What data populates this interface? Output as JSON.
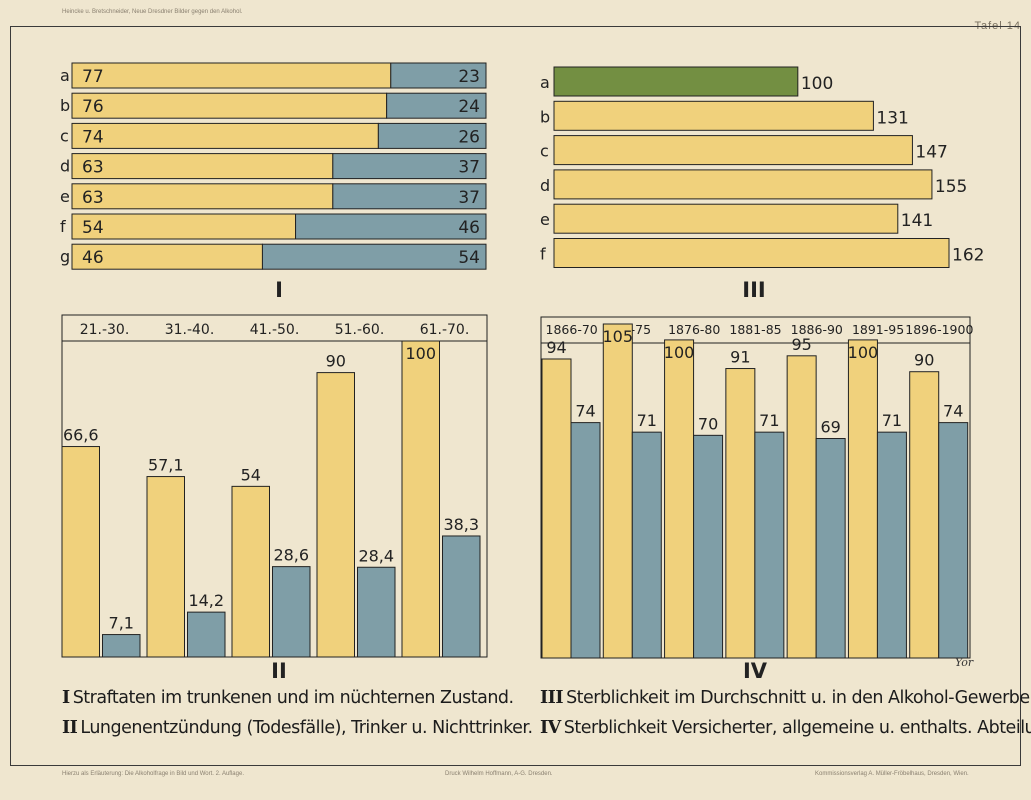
{
  "header": {
    "left_small": "Heincke u. Bretschneider, Neue Dresdner Bilder gegen den Alkohol.",
    "plate_label": "Tafel 14"
  },
  "footer": {
    "left": "Hierzu als Erläuterung: Die Alkoholfrage in Bild und Wort. 2. Auflage.",
    "center": "Druck Wilhelm Hoffmann, A-G. Dresden.",
    "right": "Kommissionsverlag A. Müller-Fröbelhaus, Dresden, Wien.",
    "signature": "Yor"
  },
  "captions": [
    {
      "numeral": "I",
      "text": "Straftaten im trunkenen und im nüchternen Zustand."
    },
    {
      "numeral": "II",
      "text": "Lungenentzündung (Todesfälle), Trinker u. Nichttrinker."
    },
    {
      "numeral": "III",
      "text": "Sterblichkeit im Durchschnitt u. in den Alkohol-Gewerben."
    },
    {
      "numeral": "IV",
      "text": "Sterblichkeit Versicherter, allgemeine u. enthalts. Abteilung."
    }
  ],
  "colors": {
    "yellow": "#f0d17c",
    "blue": "#7f9ea7",
    "green": "#738f42",
    "ink": "#222222"
  },
  "chart_data": [
    {
      "id": "I",
      "type": "bar",
      "orientation": "horizontal",
      "stacked": true,
      "numeral": "I",
      "categories": [
        "a",
        "b",
        "c",
        "d",
        "e",
        "f",
        "g"
      ],
      "series": [
        {
          "values": [
            77,
            76,
            74,
            63,
            63,
            54,
            46
          ],
          "color": "yellow"
        },
        {
          "values": [
            23,
            24,
            26,
            37,
            37,
            46,
            54
          ],
          "color": "blue"
        }
      ],
      "xlim": [
        0,
        100
      ]
    },
    {
      "id": "III",
      "type": "bar",
      "orientation": "horizontal",
      "numeral": "III",
      "categories": [
        "a",
        "b",
        "c",
        "d",
        "e",
        "f"
      ],
      "values": [
        100,
        131,
        147,
        155,
        141,
        162
      ],
      "colors": [
        "green",
        "yellow",
        "yellow",
        "yellow",
        "yellow",
        "yellow"
      ],
      "xlim": [
        0,
        162
      ]
    },
    {
      "id": "II",
      "type": "bar",
      "orientation": "vertical",
      "numeral": "II",
      "categories": [
        "21.-30.",
        "31.-40.",
        "41.-50.",
        "51.-60.",
        "61.-70."
      ],
      "series": [
        {
          "values": [
            66.6,
            57.1,
            54,
            90,
            100
          ],
          "labels": [
            "66,6",
            "57,1",
            "54",
            "90",
            "100"
          ],
          "color": "yellow"
        },
        {
          "values": [
            7.1,
            14.2,
            28.6,
            28.4,
            38.3
          ],
          "labels": [
            "7,1",
            "14,2",
            "28,6",
            "28,4",
            "38,3"
          ],
          "color": "blue"
        }
      ],
      "ylim": [
        0,
        100
      ]
    },
    {
      "id": "IV",
      "type": "bar",
      "orientation": "vertical",
      "numeral": "IV",
      "categories": [
        "1866-70",
        "71-75",
        "1876-80",
        "1881-85",
        "1886-90",
        "1891-95",
        "1896-1900"
      ],
      "series": [
        {
          "values": [
            94,
            105,
            100,
            91,
            95,
            100,
            90
          ],
          "color": "yellow"
        },
        {
          "values": [
            74,
            71,
            70,
            71,
            69,
            71,
            74
          ],
          "color": "blue"
        }
      ],
      "ylim": [
        0,
        105
      ]
    }
  ]
}
